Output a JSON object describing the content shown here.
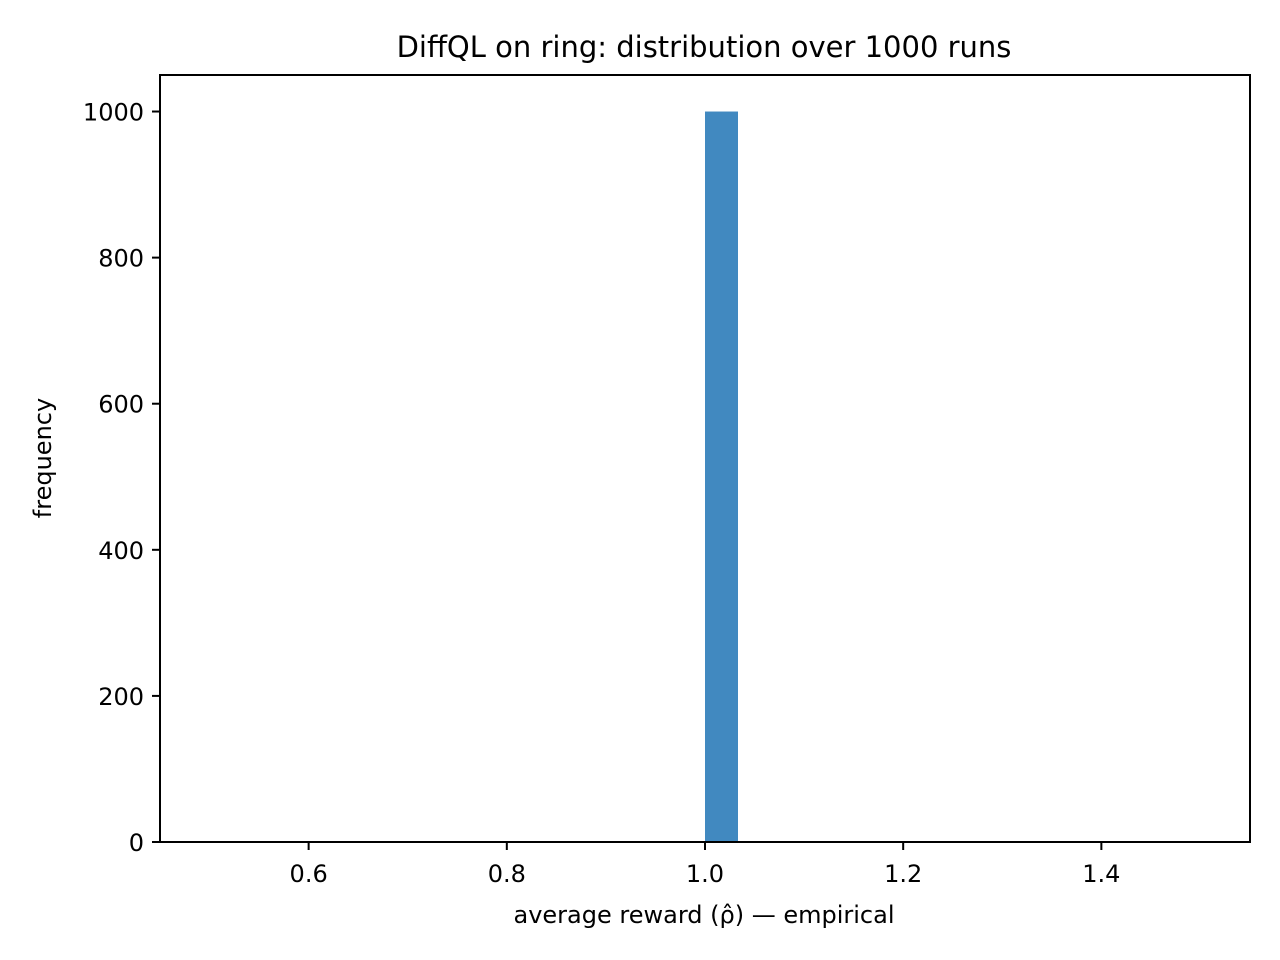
{
  "chart_data": {
    "type": "bar",
    "title": "DiffQL on ring: distribution over 1000 runs",
    "xlabel": "average reward (ρ̂) — empirical",
    "ylabel": "frequency",
    "xlim": [
      0.45,
      1.55
    ],
    "ylim": [
      0,
      1050
    ],
    "xticks": [
      0.6,
      0.8,
      1.0,
      1.2,
      1.4
    ],
    "xtick_labels": [
      "0.6",
      "0.8",
      "1.0",
      "1.2",
      "1.4"
    ],
    "yticks": [
      0,
      200,
      400,
      600,
      800,
      1000
    ],
    "ytick_labels": [
      "0",
      "200",
      "400",
      "600",
      "800",
      "1000"
    ],
    "grid": false,
    "legend": "none",
    "bar_color": "#4189c0",
    "bars": [
      {
        "x_start": 1.0,
        "x_end": 1.0333,
        "value": 1000
      }
    ]
  }
}
